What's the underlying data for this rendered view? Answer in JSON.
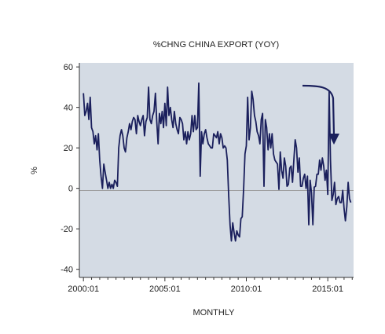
{
  "chart_data": {
    "type": "line",
    "title": "%CHNG CHINA EXPORT (YOY)",
    "xlabel": "MONTHLY",
    "ylabel": "%",
    "ylim": [
      -44,
      62
    ],
    "yticks": [
      -40,
      -20,
      0,
      20,
      40,
      60
    ],
    "x_tick_labels": [
      "2000:01",
      "2005:01",
      "2010:01",
      "2015:01"
    ],
    "xlim": [
      "1999:10",
      "2016:08"
    ],
    "grid": "horizontal at 0",
    "colors": {
      "line": "#1a1f5c",
      "background": "#d4dbe4",
      "zero_line": "#999999",
      "arrow": "#1a1f5c"
    },
    "annotation": "downward arrow pointing to the latest values",
    "series": [
      {
        "x": [
          "2000:01",
          "2000:02",
          "2000:03",
          "2000:04",
          "2000:05",
          "2000:06",
          "2000:07",
          "2000:08",
          "2000:09",
          "2000:10",
          "2000:11",
          "2000:12",
          "2001:01",
          "2001:02",
          "2001:03",
          "2001:04",
          "2001:05",
          "2001:06",
          "2001:07",
          "2001:08",
          "2001:09",
          "2001:10",
          "2001:11",
          "2001:12",
          "2002:01",
          "2002:02",
          "2002:03",
          "2002:04",
          "2002:05",
          "2002:06",
          "2002:07",
          "2002:08",
          "2002:09",
          "2002:10",
          "2002:11",
          "2002:12",
          "2003:01",
          "2003:02",
          "2003:03",
          "2003:04",
          "2003:05",
          "2003:06",
          "2003:07",
          "2003:08",
          "2003:09",
          "2003:10",
          "2003:11",
          "2003:12",
          "2004:01",
          "2004:02",
          "2004:03",
          "2004:04",
          "2004:05",
          "2004:06",
          "2004:07",
          "2004:08",
          "2004:09",
          "2004:10",
          "2004:11",
          "2004:12",
          "2005:01",
          "2005:02",
          "2005:03",
          "2005:04",
          "2005:05",
          "2005:06",
          "2005:07",
          "2005:08",
          "2005:09",
          "2005:10",
          "2005:11",
          "2005:12",
          "2006:01",
          "2006:02",
          "2006:03",
          "2006:04",
          "2006:05",
          "2006:06",
          "2006:07",
          "2006:08",
          "2006:09",
          "2006:10",
          "2006:11",
          "2006:12",
          "2007:01",
          "2007:02",
          "2007:03",
          "2007:04",
          "2007:05",
          "2007:06",
          "2007:07",
          "2007:08",
          "2007:09",
          "2007:10",
          "2007:11",
          "2007:12",
          "2008:01",
          "2008:02",
          "2008:03",
          "2008:04",
          "2008:05",
          "2008:06",
          "2008:07",
          "2008:08",
          "2008:09",
          "2008:10",
          "2008:11",
          "2008:12",
          "2009:01",
          "2009:02",
          "2009:03",
          "2009:04",
          "2009:05",
          "2009:06",
          "2009:07",
          "2009:08",
          "2009:09",
          "2009:10",
          "2009:11",
          "2009:12",
          "2010:01",
          "2010:02",
          "2010:03",
          "2010:04",
          "2010:05",
          "2010:06",
          "2010:07",
          "2010:08",
          "2010:09",
          "2010:10",
          "2010:11",
          "2010:12",
          "2011:01",
          "2011:02",
          "2011:03",
          "2011:04",
          "2011:05",
          "2011:06",
          "2011:07",
          "2011:08",
          "2011:09",
          "2011:10",
          "2011:11",
          "2011:12",
          "2012:01",
          "2012:02",
          "2012:03",
          "2012:04",
          "2012:05",
          "2012:06",
          "2012:07",
          "2012:08",
          "2012:09",
          "2012:10",
          "2012:11",
          "2012:12",
          "2013:01",
          "2013:02",
          "2013:03",
          "2013:04",
          "2013:05",
          "2013:06",
          "2013:07",
          "2013:08",
          "2013:09",
          "2013:10",
          "2013:11",
          "2013:12",
          "2014:01",
          "2014:02",
          "2014:03",
          "2014:04",
          "2014:05",
          "2014:06",
          "2014:07",
          "2014:08",
          "2014:09",
          "2014:10",
          "2014:11",
          "2014:12",
          "2015:01",
          "2015:02",
          "2015:03",
          "2015:04",
          "2015:05",
          "2015:06",
          "2015:07",
          "2015:08",
          "2015:09",
          "2015:10",
          "2015:11",
          "2015:12",
          "2016:01",
          "2016:02",
          "2016:03",
          "2016:04",
          "2016:05",
          "2016:06"
        ],
        "values": [
          47,
          36,
          38,
          42,
          34,
          45,
          30,
          28,
          22,
          26,
          19,
          27,
          14,
          6,
          0,
          12,
          8,
          4,
          0,
          3,
          0,
          2,
          0,
          4,
          3,
          1,
          20,
          26,
          29,
          26,
          20,
          18,
          25,
          28,
          32,
          29,
          33,
          35,
          34,
          27,
          36,
          33,
          31,
          34,
          36,
          26,
          33,
          35,
          50,
          34,
          32,
          36,
          38,
          47,
          33,
          22,
          37,
          32,
          38,
          30,
          42,
          31,
          50,
          36,
          40,
          34,
          30,
          38,
          32,
          29,
          27,
          35,
          34,
          32,
          24,
          28,
          22,
          28,
          24,
          27,
          36,
          28,
          36,
          29,
          30,
          52,
          6,
          28,
          22,
          27,
          29,
          25,
          22,
          21,
          20,
          20,
          27,
          26,
          25,
          28,
          22,
          27,
          25,
          20,
          21,
          20,
          14,
          -3,
          -18,
          -26,
          -17,
          -22,
          -26,
          -21,
          -23,
          -24,
          -15,
          -14,
          0,
          17,
          21,
          45,
          24,
          30,
          48,
          44,
          36,
          33,
          28,
          26,
          22,
          34,
          37,
          1,
          34,
          30,
          19,
          27,
          20,
          27,
          17,
          14,
          13,
          12,
          -0.5,
          18,
          9,
          5,
          15,
          11,
          1,
          2,
          10,
          11,
          3,
          14,
          24,
          20,
          8,
          15,
          1,
          1,
          5,
          7,
          0,
          6,
          -18,
          4,
          -2,
          -18,
          0.6,
          1,
          7,
          7,
          14,
          9,
          15,
          11,
          4,
          9,
          -3,
          48,
          14,
          -6,
          -3,
          3,
          -8,
          -5,
          -4,
          -7,
          -7,
          -1,
          -10,
          -16,
          -9,
          3,
          -5,
          -7
        ]
      }
    ]
  }
}
